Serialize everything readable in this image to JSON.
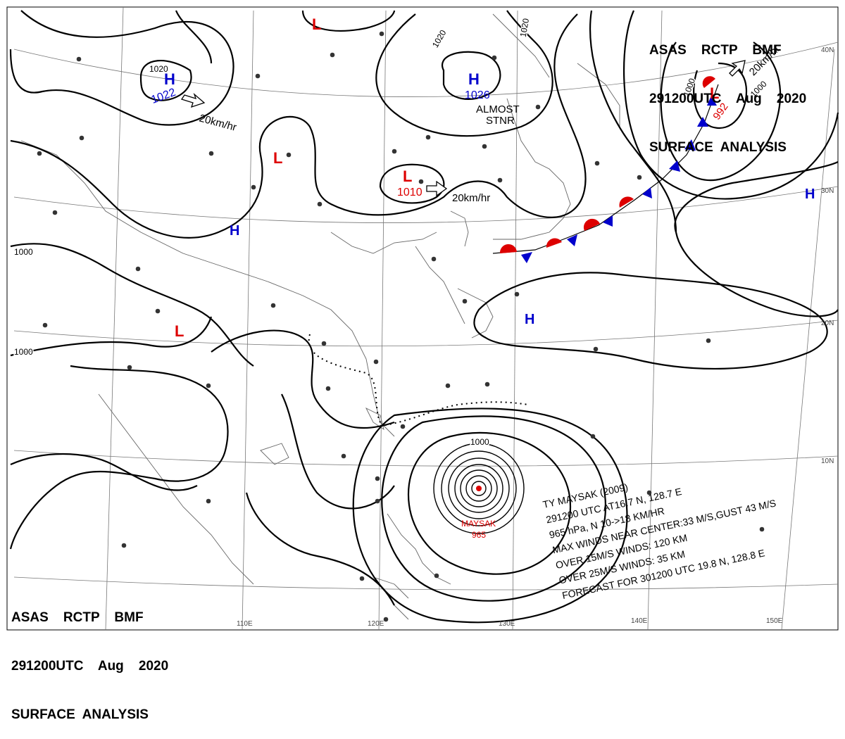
{
  "header": {
    "line1": "ASAS    RCTP    BMF",
    "line2": "291200UTC    Aug    2020",
    "line3": "SURFACE  ANALYSIS"
  },
  "lon_labels": [
    "110E",
    "120E",
    "130E",
    "140E",
    "150E"
  ],
  "lat_labels": [
    "40N",
    "30N",
    "20N",
    "10N"
  ],
  "highs": [
    {
      "symbol": "H",
      "pressure": "1022"
    },
    {
      "symbol": "H",
      "pressure": "1026"
    },
    {
      "symbol": "H",
      "pressure": ""
    },
    {
      "symbol": "H",
      "pressure": ""
    },
    {
      "symbol": "H",
      "pressure": ""
    }
  ],
  "lows": [
    {
      "symbol": "L",
      "pressure": ""
    },
    {
      "symbol": "L",
      "pressure": ""
    },
    {
      "symbol": "L",
      "pressure": "1010"
    },
    {
      "symbol": "L",
      "pressure": ""
    },
    {
      "symbol": "L",
      "pressure": "992"
    }
  ],
  "motion_labels": [
    "20km/hr",
    "20km/hr",
    "20km/hr"
  ],
  "stationary_note": [
    "ALMOST",
    "STNR"
  ],
  "isobar_labels": [
    "1020",
    "1020",
    "1020",
    "1000",
    "1000",
    "1000",
    "1000",
    "1000"
  ],
  "typhoon": {
    "label": "MAYSAK",
    "pressure": "965",
    "text": [
      "TY  MAYSAK  (2009)",
      "291200 UTC  AT16.7 N, 128.7 E",
      "965 hPa, N  10->18 KM/HR",
      "MAX WINDS NEAR CENTER:33 M/S,GUST 43 M/S",
      "OVER 15M/S WINDS: 120 KM",
      "OVER 25M/S WINDS: 35 KM",
      "FORECAST FOR 301200 UTC 19.8 N, 128.8 E"
    ]
  },
  "colors": {
    "high": "#0000cc",
    "low": "#dd0000",
    "line": "#000000",
    "grid": "#555555",
    "coast": "#666666"
  }
}
